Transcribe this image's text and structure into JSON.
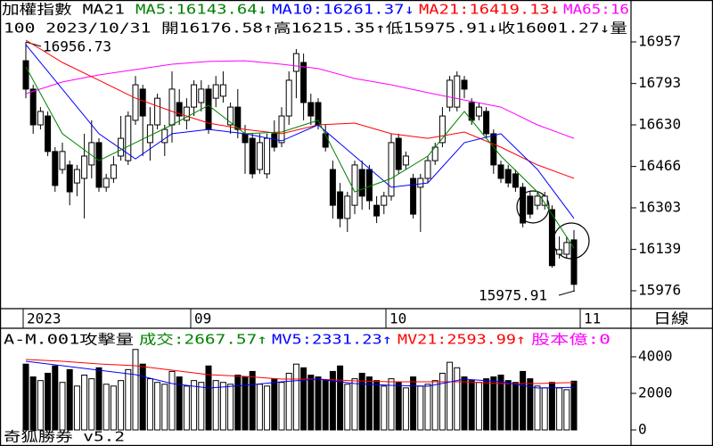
{
  "header": {
    "title": "加權指數 MA21",
    "ma_labels": [
      {
        "label": "MA5:16143.64↓",
        "color": "#008000"
      },
      {
        "label": "MA10:16261.37↓",
        "color": "#0000ff"
      },
      {
        "label": "MA21:16419.13↓",
        "color": "#ff0000"
      },
      {
        "label": "MA65:16",
        "color": "#ff00ff"
      }
    ],
    "info": "100 2023/10/31 開16176.58↑高16215.35↑低15975.91↓收16001.27↓量"
  },
  "x_labels": [
    "2023",
    "09",
    "10",
    "11"
  ],
  "period": "日線",
  "footer": "奇狐勝券 v5.2",
  "chart_data": [
    {
      "type": "candlestick",
      "up_color": "#ffffff",
      "down_color": "#000000",
      "ylim": [
        15909,
        17052
      ],
      "yticks": [
        16957,
        16793,
        16630,
        16466,
        16303,
        16139,
        15976
      ],
      "annotations": [
        "16956.73",
        "15975.91"
      ],
      "candles": [
        [
          16883,
          16956.73,
          16735,
          16771
        ],
        [
          16771,
          16788,
          16595,
          16630
        ],
        [
          16630,
          16700,
          16612,
          16683
        ],
        [
          16665,
          16683,
          16507,
          16525
        ],
        [
          16525,
          16542,
          16366,
          16391
        ],
        [
          16454,
          16560,
          16437,
          16525
        ],
        [
          16472,
          16489,
          16313,
          16366
        ],
        [
          16401,
          16472,
          16349,
          16454
        ],
        [
          16419,
          16595,
          16261,
          16507
        ],
        [
          16472,
          16648,
          16419,
          16560
        ],
        [
          16560,
          16577,
          16366,
          16384
        ],
        [
          16384,
          16437,
          16366,
          16419
        ],
        [
          16419,
          16507,
          16401,
          16472
        ],
        [
          16507,
          16665,
          16489,
          16577
        ],
        [
          16489,
          16683,
          16472,
          16665
        ],
        [
          16648,
          16823,
          16630,
          16788
        ],
        [
          16771,
          16788,
          16507,
          16665
        ],
        [
          16560,
          16700,
          16489,
          16630
        ],
        [
          16630,
          16753,
          16612,
          16735
        ],
        [
          16560,
          16630,
          16507,
          16612
        ],
        [
          16630,
          16841,
          16560,
          16771
        ],
        [
          16718,
          16771,
          16630,
          16665
        ],
        [
          16648,
          16735,
          16612,
          16700
        ],
        [
          16700,
          16806,
          16665,
          16788
        ],
        [
          16718,
          16806,
          16683,
          16771
        ],
        [
          16771,
          16788,
          16595,
          16612
        ],
        [
          16735,
          16823,
          16700,
          16788
        ],
        [
          16743,
          16841,
          16718,
          16788
        ],
        [
          16630,
          16718,
          16595,
          16700
        ],
        [
          16700,
          16771,
          16577,
          16612
        ],
        [
          16595,
          16630,
          16437,
          16560
        ],
        [
          16577,
          16595,
          16419,
          16437
        ],
        [
          16454,
          16595,
          16437,
          16560
        ],
        [
          16437,
          16595,
          16419,
          16577
        ],
        [
          16595,
          16648,
          16525,
          16542
        ],
        [
          16560,
          16700,
          16542,
          16665
        ],
        [
          16665,
          16841,
          16630,
          16806
        ],
        [
          16841,
          16929,
          16735,
          16911
        ],
        [
          16876,
          16911,
          16648,
          16718
        ],
        [
          16718,
          16753,
          16630,
          16665
        ],
        [
          16718,
          16735,
          16612,
          16630
        ],
        [
          16595,
          16630,
          16525,
          16542
        ],
        [
          16454,
          16489,
          16261,
          16313
        ],
        [
          16366,
          16401,
          16226,
          16261
        ],
        [
          16261,
          16366,
          16208,
          16349
        ],
        [
          16313,
          16489,
          16278,
          16472
        ],
        [
          16454,
          16489,
          16296,
          16349
        ],
        [
          16454,
          16472,
          16296,
          16331
        ],
        [
          16313,
          16349,
          16243,
          16271
        ],
        [
          16313,
          16366,
          16278,
          16349
        ],
        [
          16349,
          16595,
          16331,
          16560
        ],
        [
          16577,
          16595,
          16437,
          16454
        ],
        [
          16472,
          16525,
          16454,
          16507
        ],
        [
          16419,
          16437,
          16261,
          16278
        ],
        [
          16384,
          16437,
          16208,
          16419
        ],
        [
          16419,
          16507,
          16401,
          16489
        ],
        [
          16489,
          16560,
          16472,
          16542
        ],
        [
          16560,
          16700,
          16542,
          16665
        ],
        [
          16700,
          16823,
          16683,
          16806
        ],
        [
          16700,
          16841,
          16683,
          16823
        ],
        [
          16806,
          16823,
          16735,
          16771
        ],
        [
          16718,
          16735,
          16630,
          16648
        ],
        [
          16665,
          16718,
          16648,
          16700
        ],
        [
          16683,
          16700,
          16577,
          16595
        ],
        [
          16595,
          16612,
          16437,
          16472
        ],
        [
          16472,
          16489,
          16401,
          16419
        ],
        [
          16454,
          16472,
          16384,
          16401
        ],
        [
          16437,
          16454,
          16366,
          16384
        ],
        [
          16384,
          16401,
          16226,
          16243
        ],
        [
          16349,
          16366,
          16261,
          16278
        ],
        [
          16313,
          16366,
          16296,
          16349
        ],
        [
          16313,
          16366,
          16296,
          16349
        ],
        [
          16296,
          16313,
          16067,
          16075
        ],
        [
          16120,
          16190,
          16103,
          16138
        ],
        [
          16120,
          16190,
          16103,
          16166
        ],
        [
          16176.58,
          16215.35,
          15975.91,
          16001.27
        ]
      ],
      "lines": [
        {
          "color": "#ff00ff",
          "x": [
            0,
            5,
            10,
            15,
            20,
            25,
            30,
            35,
            40,
            45,
            50,
            55,
            60,
            65,
            70,
            75
          ],
          "values": [
            16753,
            16799,
            16827,
            16848,
            16869,
            16880,
            16883,
            16869,
            16852,
            16813,
            16788,
            16757,
            16728,
            16700,
            16630,
            16577
          ]
        },
        {
          "color": "#ff0000",
          "x": [
            0,
            5,
            10,
            15,
            20,
            25,
            30,
            35,
            40,
            45,
            50,
            55,
            60,
            65,
            70,
            75
          ],
          "values": [
            16964,
            16876,
            16806,
            16735,
            16683,
            16637,
            16612,
            16595,
            16630,
            16637,
            16595,
            16577,
            16602,
            16542,
            16472,
            16419.13
          ]
        },
        {
          "color": "#0000ff",
          "x": [
            0,
            5,
            10,
            15,
            20,
            25,
            30,
            35,
            40,
            45,
            50,
            55,
            60,
            65,
            70,
            75
          ],
          "values": [
            16946,
            16771,
            16595,
            16496,
            16595,
            16612,
            16595,
            16567,
            16630,
            16507,
            16384,
            16401,
            16560,
            16595,
            16454,
            16261.37
          ]
        },
        {
          "color": "#008000",
          "x": [
            0,
            5,
            10,
            15,
            20,
            25,
            30,
            35,
            40,
            45,
            50,
            55,
            60,
            65,
            70,
            75
          ],
          "values": [
            16859,
            16595,
            16489,
            16560,
            16630,
            16707,
            16595,
            16602,
            16648,
            16366,
            16419,
            16507,
            16683,
            16507,
            16366,
            16143.64
          ]
        }
      ]
    },
    {
      "type": "bar",
      "title": "A-M.001攻擊量",
      "header_labels": [
        {
          "label": "成交:2667.57↑",
          "color": "#008000"
        },
        {
          "label": "MV5:2331.23↑",
          "color": "#0000ff"
        },
        {
          "label": "MV21:2593.99↑",
          "color": "#ff0000"
        },
        {
          "label": "股本億:0",
          "color": "#ff00ff"
        }
      ],
      "ylim": [
        0,
        5500
      ],
      "yticks": [
        4000,
        2000,
        0
      ],
      "values": [
        3600,
        2900,
        2700,
        3100,
        3500,
        2600,
        3300,
        2400,
        3000,
        2800,
        3400,
        2500,
        2400,
        2700,
        3300,
        4400,
        3600,
        2800,
        2600,
        2500,
        3200,
        2900,
        2400,
        2700,
        2600,
        3500,
        2700,
        2600,
        2500,
        3000,
        2900,
        3200,
        2500,
        2400,
        2800,
        2600,
        3100,
        3600,
        3400,
        3000,
        2900,
        2700,
        3200,
        3500,
        2500,
        2800,
        3100,
        2900,
        2700,
        2400,
        2800,
        2600,
        2300,
        2900,
        2400,
        2500,
        2700,
        3100,
        3700,
        3400,
        2900,
        2700,
        2600,
        2800,
        2900,
        3000,
        2700,
        2600,
        3200,
        2800,
        2400,
        2300,
        2600,
        2300,
        2200,
        2667.57
      ],
      "lines": [
        {
          "color": "#ff0000",
          "x": [
            0,
            5,
            10,
            15,
            20,
            25,
            30,
            35,
            40,
            45,
            50,
            55,
            60,
            65,
            70,
            75
          ],
          "values": [
            3855,
            3758,
            3611,
            3514,
            3270,
            3026,
            2928,
            2782,
            2782,
            2684,
            2635,
            2635,
            2635,
            2538,
            2538,
            2593.99
          ]
        },
        {
          "color": "#0000ff",
          "x": [
            0,
            5,
            10,
            15,
            20,
            25,
            30,
            35,
            40,
            45,
            50,
            55,
            60,
            65,
            70,
            75
          ],
          "values": [
            3758,
            3514,
            3270,
            3026,
            2538,
            2294,
            2440,
            2635,
            2782,
            2538,
            2440,
            2391,
            2782,
            2635,
            2294,
            2331.23
          ]
        }
      ]
    }
  ]
}
